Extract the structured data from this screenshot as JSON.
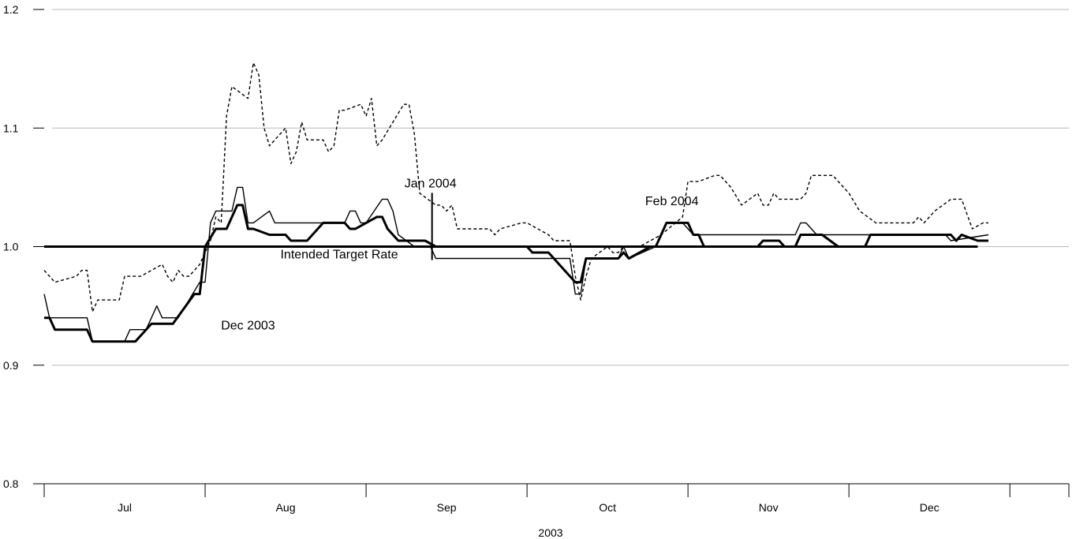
{
  "chart_data": {
    "type": "line",
    "title": "",
    "xlabel": "2003",
    "ylabel": "",
    "xlim": [
      "2003-06-23",
      "2003-12-31"
    ],
    "ylim": [
      0.8,
      1.2
    ],
    "yticks": [
      0.8,
      0.9,
      1.0,
      1.1,
      1.2
    ],
    "ytick_labels": [
      "0.8",
      "0.9",
      "1.0",
      "1.1",
      "1.2"
    ],
    "xticks": [
      "2003-06-23",
      "2003-07-23",
      "2003-08-22",
      "2003-09-21",
      "2003-10-21",
      "2003-11-20",
      "2003-12-20",
      "2003-12-31"
    ],
    "month_labels": [
      {
        "label": "Jul",
        "at": "2003-07-08"
      },
      {
        "label": "Aug",
        "at": "2003-08-07"
      },
      {
        "label": "Sep",
        "at": "2003-09-06"
      },
      {
        "label": "Oct",
        "at": "2003-10-06"
      },
      {
        "label": "Nov",
        "at": "2003-11-05"
      },
      {
        "label": "Dec",
        "at": "2003-12-05"
      }
    ],
    "grid": true,
    "annotations": [
      {
        "text": "Feb 2004",
        "x": "2003-10-18",
        "y": 1.035
      },
      {
        "text": "Jan 2004",
        "x": "2003-09-03",
        "y": 1.05
      },
      {
        "text": "Intended Target Rate",
        "x": "2003-08-17",
        "y": 0.99
      },
      {
        "text": "Dec 2003",
        "x": "2003-07-31",
        "y": 0.93
      }
    ],
    "series": [
      {
        "name": "Intended Target Rate",
        "style": "thick",
        "points": [
          [
            "2003-06-23",
            1.0
          ],
          [
            "2003-12-14",
            1.0
          ]
        ]
      },
      {
        "name": "Feb 2004",
        "style": "dashed",
        "points": [
          [
            "2003-06-23",
            0.98
          ],
          [
            "2003-06-24",
            0.975
          ],
          [
            "2003-06-25",
            0.97
          ],
          [
            "2003-06-29",
            0.975
          ],
          [
            "2003-06-30",
            0.98
          ],
          [
            "2003-07-01",
            0.98
          ],
          [
            "2003-07-02",
            0.945
          ],
          [
            "2003-07-03",
            0.955
          ],
          [
            "2003-07-07",
            0.955
          ],
          [
            "2003-07-08",
            0.975
          ],
          [
            "2003-07-11",
            0.975
          ],
          [
            "2003-07-15",
            0.985
          ],
          [
            "2003-07-16",
            0.975
          ],
          [
            "2003-07-17",
            0.97
          ],
          [
            "2003-07-18",
            0.98
          ],
          [
            "2003-07-19",
            0.975
          ],
          [
            "2003-07-20",
            0.975
          ],
          [
            "2003-07-22",
            0.985
          ],
          [
            "2003-07-24",
            1.005
          ],
          [
            "2003-07-25",
            1.025
          ],
          [
            "2003-07-26",
            1.02
          ],
          [
            "2003-07-27",
            1.11
          ],
          [
            "2003-07-28",
            1.135
          ],
          [
            "2003-07-31",
            1.125
          ],
          [
            "2003-08-01",
            1.155
          ],
          [
            "2003-08-02",
            1.145
          ],
          [
            "2003-08-03",
            1.1
          ],
          [
            "2003-08-04",
            1.085
          ],
          [
            "2003-08-07",
            1.1
          ],
          [
            "2003-08-08",
            1.07
          ],
          [
            "2003-08-09",
            1.08
          ],
          [
            "2003-08-10",
            1.105
          ],
          [
            "2003-08-11",
            1.09
          ],
          [
            "2003-08-14",
            1.09
          ],
          [
            "2003-08-15",
            1.08
          ],
          [
            "2003-08-16",
            1.085
          ],
          [
            "2003-08-17",
            1.115
          ],
          [
            "2003-08-18",
            1.115
          ],
          [
            "2003-08-21",
            1.12
          ],
          [
            "2003-08-22",
            1.11
          ],
          [
            "2003-08-23",
            1.125
          ],
          [
            "2003-08-24",
            1.085
          ],
          [
            "2003-08-25",
            1.09
          ],
          [
            "2003-08-29",
            1.12
          ],
          [
            "2003-08-30",
            1.12
          ],
          [
            "2003-08-31",
            1.095
          ],
          [
            "2003-09-01",
            1.045
          ],
          [
            "2003-09-04",
            1.035
          ],
          [
            "2003-09-05",
            1.035
          ],
          [
            "2003-09-06",
            1.03
          ],
          [
            "2003-09-07",
            1.035
          ],
          [
            "2003-09-08",
            1.015
          ],
          [
            "2003-09-11",
            1.015
          ],
          [
            "2003-09-14",
            1.015
          ],
          [
            "2003-09-15",
            1.01
          ],
          [
            "2003-09-16",
            1.015
          ],
          [
            "2003-09-20",
            1.02
          ],
          [
            "2003-09-21",
            1.02
          ],
          [
            "2003-09-25",
            1.01
          ],
          [
            "2003-09-26",
            1.005
          ],
          [
            "2003-09-29",
            1.005
          ],
          [
            "2003-09-30",
            0.975
          ],
          [
            "2003-10-01",
            0.955
          ],
          [
            "2003-10-02",
            0.975
          ],
          [
            "2003-10-03",
            0.99
          ],
          [
            "2003-10-06",
            1.0
          ],
          [
            "2003-10-07",
            0.995
          ],
          [
            "2003-10-08",
            0.995
          ],
          [
            "2003-10-09",
            1.0
          ],
          [
            "2003-10-12",
            1.0
          ],
          [
            "2003-10-16",
            1.01
          ],
          [
            "2003-10-20",
            1.025
          ],
          [
            "2003-10-21",
            1.055
          ],
          [
            "2003-10-23",
            1.055
          ],
          [
            "2003-10-26",
            1.06
          ],
          [
            "2003-10-27",
            1.06
          ],
          [
            "2003-10-28",
            1.055
          ],
          [
            "2003-10-29",
            1.05
          ],
          [
            "2003-10-31",
            1.035
          ],
          [
            "2003-11-03",
            1.045
          ],
          [
            "2003-11-04",
            1.035
          ],
          [
            "2003-11-05",
            1.035
          ],
          [
            "2003-11-06",
            1.045
          ],
          [
            "2003-11-07",
            1.04
          ],
          [
            "2003-11-11",
            1.04
          ],
          [
            "2003-11-12",
            1.045
          ],
          [
            "2003-11-13",
            1.06
          ],
          [
            "2003-11-17",
            1.06
          ],
          [
            "2003-11-18",
            1.055
          ],
          [
            "2003-11-20",
            1.045
          ],
          [
            "2003-11-22",
            1.03
          ],
          [
            "2003-11-25",
            1.02
          ],
          [
            "2003-12-02",
            1.02
          ],
          [
            "2003-12-03",
            1.025
          ],
          [
            "2003-12-04",
            1.02
          ],
          [
            "2003-12-06",
            1.03
          ],
          [
            "2003-12-09",
            1.04
          ],
          [
            "2003-12-11",
            1.04
          ],
          [
            "2003-12-13",
            1.015
          ],
          [
            "2003-12-15",
            1.02
          ],
          [
            "2003-12-16",
            1.02
          ]
        ]
      },
      {
        "name": "Jan 2004",
        "style": "thin",
        "points": [
          [
            "2003-06-23",
            0.96
          ],
          [
            "2003-06-24",
            0.94
          ],
          [
            "2003-07-01",
            0.94
          ],
          [
            "2003-07-02",
            0.92
          ],
          [
            "2003-07-08",
            0.92
          ],
          [
            "2003-07-09",
            0.93
          ],
          [
            "2003-07-12",
            0.93
          ],
          [
            "2003-07-14",
            0.95
          ],
          [
            "2003-07-15",
            0.94
          ],
          [
            "2003-07-18",
            0.94
          ],
          [
            "2003-07-22",
            0.97
          ],
          [
            "2003-07-23",
            0.97
          ],
          [
            "2003-07-24",
            1.02
          ],
          [
            "2003-07-25",
            1.03
          ],
          [
            "2003-07-28",
            1.03
          ],
          [
            "2003-07-29",
            1.05
          ],
          [
            "2003-07-30",
            1.05
          ],
          [
            "2003-07-31",
            1.02
          ],
          [
            "2003-08-01",
            1.02
          ],
          [
            "2003-08-04",
            1.03
          ],
          [
            "2003-08-05",
            1.02
          ],
          [
            "2003-08-18",
            1.02
          ],
          [
            "2003-08-19",
            1.03
          ],
          [
            "2003-08-20",
            1.03
          ],
          [
            "2003-08-21",
            1.02
          ],
          [
            "2003-08-22",
            1.02
          ],
          [
            "2003-08-25",
            1.04
          ],
          [
            "2003-08-26",
            1.04
          ],
          [
            "2003-08-27",
            1.03
          ],
          [
            "2003-08-28",
            1.01
          ],
          [
            "2003-08-31",
            1.0
          ],
          [
            "2003-09-03",
            1.0
          ],
          [
            "2003-09-04",
            0.99
          ],
          [
            "2003-09-26",
            0.99
          ],
          [
            "2003-09-29",
            0.99
          ],
          [
            "2003-09-30",
            0.96
          ],
          [
            "2003-10-01",
            0.96
          ],
          [
            "2003-10-02",
            0.99
          ],
          [
            "2003-10-05",
            0.99
          ],
          [
            "2003-10-08",
            0.99
          ],
          [
            "2003-10-09",
            1.0
          ],
          [
            "2003-10-10",
            0.99
          ],
          [
            "2003-10-15",
            1.0
          ],
          [
            "2003-10-16",
            1.01
          ],
          [
            "2003-10-17",
            1.02
          ],
          [
            "2003-10-20",
            1.02
          ],
          [
            "2003-10-22",
            1.01
          ],
          [
            "2003-11-10",
            1.01
          ],
          [
            "2003-11-11",
            1.02
          ],
          [
            "2003-11-12",
            1.02
          ],
          [
            "2003-11-14",
            1.01
          ],
          [
            "2003-12-06",
            1.01
          ],
          [
            "2003-12-07",
            1.01
          ],
          [
            "2003-12-08",
            1.01
          ],
          [
            "2003-12-09",
            1.005
          ],
          [
            "2003-12-16",
            1.01
          ]
        ]
      },
      {
        "name": "Dec 2003",
        "style": "thick",
        "points": [
          [
            "2003-06-23",
            0.94
          ],
          [
            "2003-06-24",
            0.94
          ],
          [
            "2003-06-25",
            0.93
          ],
          [
            "2003-07-01",
            0.93
          ],
          [
            "2003-07-02",
            0.92
          ],
          [
            "2003-07-10",
            0.92
          ],
          [
            "2003-07-13",
            0.935
          ],
          [
            "2003-07-17",
            0.935
          ],
          [
            "2003-07-21",
            0.96
          ],
          [
            "2003-07-22",
            0.96
          ],
          [
            "2003-07-23",
            1.0
          ],
          [
            "2003-07-25",
            1.015
          ],
          [
            "2003-07-27",
            1.015
          ],
          [
            "2003-07-29",
            1.035
          ],
          [
            "2003-07-30",
            1.035
          ],
          [
            "2003-07-31",
            1.015
          ],
          [
            "2003-08-01",
            1.015
          ],
          [
            "2003-08-04",
            1.01
          ],
          [
            "2003-08-07",
            1.01
          ],
          [
            "2003-08-08",
            1.005
          ],
          [
            "2003-08-11",
            1.005
          ],
          [
            "2003-08-14",
            1.02
          ],
          [
            "2003-08-18",
            1.02
          ],
          [
            "2003-08-19",
            1.015
          ],
          [
            "2003-08-20",
            1.015
          ],
          [
            "2003-08-24",
            1.025
          ],
          [
            "2003-08-25",
            1.025
          ],
          [
            "2003-08-26",
            1.015
          ],
          [
            "2003-08-28",
            1.005
          ],
          [
            "2003-08-31",
            1.005
          ],
          [
            "2003-09-02",
            1.005
          ],
          [
            "2003-09-04",
            1.0
          ],
          [
            "2003-09-21",
            1.0
          ],
          [
            "2003-09-22",
            0.995
          ],
          [
            "2003-09-25",
            0.995
          ],
          [
            "2003-09-26",
            0.99
          ],
          [
            "2003-09-29",
            0.975
          ],
          [
            "2003-09-30",
            0.97
          ],
          [
            "2003-10-01",
            0.97
          ],
          [
            "2003-10-02",
            0.99
          ],
          [
            "2003-10-06",
            0.99
          ],
          [
            "2003-10-08",
            0.99
          ],
          [
            "2003-10-09",
            0.995
          ],
          [
            "2003-10-10",
            0.99
          ],
          [
            "2003-10-14",
            1.0
          ],
          [
            "2003-10-15",
            1.0
          ],
          [
            "2003-10-16",
            1.01
          ],
          [
            "2003-10-17",
            1.02
          ],
          [
            "2003-10-21",
            1.02
          ],
          [
            "2003-10-22",
            1.01
          ],
          [
            "2003-10-23",
            1.01
          ],
          [
            "2003-10-24",
            1.0
          ],
          [
            "2003-11-03",
            1.0
          ],
          [
            "2003-11-04",
            1.005
          ],
          [
            "2003-11-07",
            1.005
          ],
          [
            "2003-11-08",
            1.0
          ],
          [
            "2003-11-10",
            1.0
          ],
          [
            "2003-11-11",
            1.01
          ],
          [
            "2003-11-14",
            1.01
          ],
          [
            "2003-11-15",
            1.01
          ],
          [
            "2003-11-18",
            1.0
          ],
          [
            "2003-11-23",
            1.0
          ],
          [
            "2003-11-24",
            1.01
          ],
          [
            "2003-12-08",
            1.01
          ],
          [
            "2003-12-09",
            1.01
          ],
          [
            "2003-12-10",
            1.005
          ],
          [
            "2003-12-11",
            1.01
          ],
          [
            "2003-12-14",
            1.005
          ],
          [
            "2003-12-16",
            1.005
          ]
        ]
      }
    ]
  }
}
